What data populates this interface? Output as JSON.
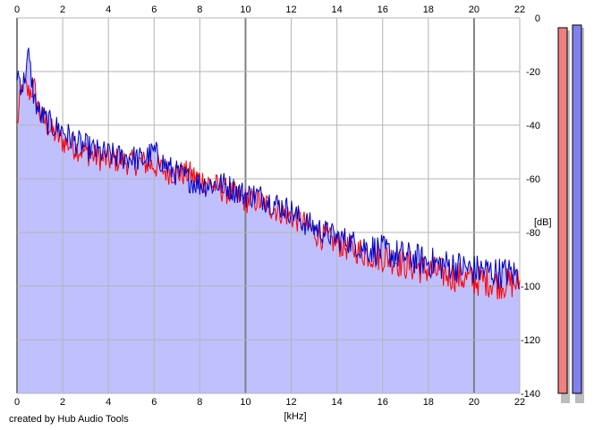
{
  "credit": "created by Hub Audio Tools",
  "chart_data": {
    "type": "area",
    "title": "",
    "xlabel": "[kHz]",
    "ylabel": "[dB]",
    "xlim": [
      0,
      22
    ],
    "ylim": [
      -140,
      0
    ],
    "x_ticks": [
      0,
      2,
      4,
      6,
      8,
      10,
      12,
      14,
      16,
      18,
      20,
      22
    ],
    "y_ticks": [
      0,
      -20,
      -40,
      -60,
      -80,
      -100,
      -120,
      -140
    ],
    "y_tick_labels": [
      "0",
      "-20",
      "-40",
      "-60",
      "-80",
      "-100",
      "-120",
      "-140"
    ],
    "grid": true,
    "colors": {
      "fill": "#c0c0ff",
      "left": "#ff0000",
      "right": "#0000c8",
      "grid": "#b4b4b4",
      "major_grid": "#808080"
    },
    "series": [
      {
        "channel": "left",
        "x": [
          0,
          0.25,
          0.5,
          0.75,
          1,
          1.5,
          2,
          2.5,
          3,
          3.5,
          4,
          4.5,
          5,
          5.5,
          6,
          6.5,
          7,
          7.5,
          8,
          8.5,
          9,
          9.5,
          10,
          10.5,
          11,
          11.5,
          12,
          12.5,
          13,
          13.5,
          14,
          14.5,
          15,
          15.5,
          16,
          16.5,
          17,
          17.5,
          18,
          18.5,
          19,
          19.5,
          20,
          20.5,
          21,
          21.5,
          22
        ],
        "values": [
          -40,
          -24,
          -28,
          -26,
          -36,
          -42,
          -46,
          -48,
          -50,
          -52,
          -53,
          -53,
          -54,
          -54,
          -55,
          -57,
          -58,
          -58,
          -60,
          -62,
          -64,
          -66,
          -68,
          -68,
          -70,
          -72,
          -74,
          -76,
          -80,
          -82,
          -84,
          -86,
          -87,
          -88,
          -89,
          -90,
          -92,
          -93,
          -94,
          -95,
          -96,
          -97,
          -98,
          -98,
          -99,
          -99,
          -99
        ]
      },
      {
        "channel": "right",
        "x": [
          0,
          0.25,
          0.5,
          0.75,
          1,
          1.5,
          2,
          2.5,
          3,
          3.5,
          4,
          4.5,
          5,
          5.5,
          6,
          6.5,
          7,
          7.5,
          8,
          8.5,
          9,
          9.5,
          10,
          10.5,
          11,
          11.5,
          12,
          12.5,
          13,
          13.5,
          14,
          14.5,
          15,
          15.5,
          16,
          16.5,
          17,
          17.5,
          18,
          18.5,
          19,
          19.5,
          20,
          20.5,
          21,
          21.5,
          22
        ],
        "values": [
          -20,
          -26,
          -14,
          -30,
          -36,
          -40,
          -42,
          -46,
          -48,
          -50,
          -51,
          -52,
          -52,
          -53,
          -50,
          -55,
          -58,
          -60,
          -62,
          -62,
          -62,
          -64,
          -66,
          -66,
          -68,
          -70,
          -72,
          -76,
          -78,
          -80,
          -82,
          -83,
          -85,
          -86,
          -87,
          -88,
          -89,
          -90,
          -91,
          -92,
          -92,
          -93,
          -94,
          -94,
          -95,
          -95,
          -96
        ]
      }
    ],
    "level_meters": {
      "left": -2,
      "right": -1
    }
  }
}
